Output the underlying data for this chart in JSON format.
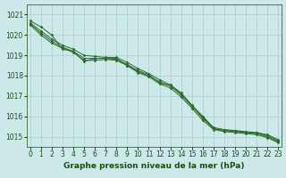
{
  "xlabel": "Graphe pression niveau de la mer (hPa)",
  "x": [
    0,
    1,
    2,
    3,
    4,
    5,
    6,
    7,
    8,
    9,
    10,
    11,
    12,
    13,
    14,
    15,
    16,
    17,
    18,
    19,
    20,
    21,
    22,
    23
  ],
  "series": [
    [
      1020.7,
      1020.4,
      1020.0,
      1019.3,
      1019.2,
      1018.7,
      1018.85,
      1018.85,
      1018.85,
      1018.5,
      1018.2,
      1018.0,
      1017.7,
      1017.5,
      1017.1,
      1016.5,
      1015.95,
      1015.4,
      1015.3,
      1015.3,
      1015.2,
      1015.2,
      1015.05,
      1014.8
    ],
    [
      1020.6,
      1020.2,
      1019.8,
      1019.5,
      1019.3,
      1019.0,
      1018.95,
      1018.9,
      1018.9,
      1018.65,
      1018.35,
      1018.1,
      1017.8,
      1017.55,
      1017.15,
      1016.55,
      1016.0,
      1015.45,
      1015.35,
      1015.3,
      1015.25,
      1015.2,
      1015.1,
      1014.85
    ],
    [
      1020.55,
      1020.1,
      1019.7,
      1019.4,
      1019.2,
      1018.85,
      1018.85,
      1018.85,
      1018.8,
      1018.55,
      1018.25,
      1018.05,
      1017.65,
      1017.5,
      1017.05,
      1016.5,
      1015.9,
      1015.4,
      1015.3,
      1015.25,
      1015.2,
      1015.15,
      1015.0,
      1014.75
    ],
    [
      1020.5,
      1020.0,
      1019.6,
      1019.35,
      1019.15,
      1018.75,
      1018.75,
      1018.8,
      1018.75,
      1018.5,
      1018.15,
      1017.95,
      1017.6,
      1017.4,
      1016.95,
      1016.4,
      1015.8,
      1015.35,
      1015.25,
      1015.2,
      1015.15,
      1015.1,
      1014.95,
      1014.7
    ]
  ],
  "line_color": "#2d6a2d",
  "marker": "D",
  "marker_size": 1.5,
  "bg_color": "#cce8e8",
  "grid_color": "#aacccc",
  "text_color": "#1a4d1a",
  "ylim": [
    1014.5,
    1021.5
  ],
  "yticks": [
    1015,
    1016,
    1017,
    1018,
    1019,
    1020,
    1021
  ],
  "xticks": [
    0,
    1,
    2,
    3,
    4,
    5,
    6,
    7,
    8,
    9,
    10,
    11,
    12,
    13,
    14,
    15,
    16,
    17,
    18,
    19,
    20,
    21,
    22,
    23
  ],
  "xlim": [
    -0.3,
    23.3
  ],
  "xlabel_fontsize": 6.5,
  "tick_fontsize": 5.5,
  "linewidth": 0.7
}
